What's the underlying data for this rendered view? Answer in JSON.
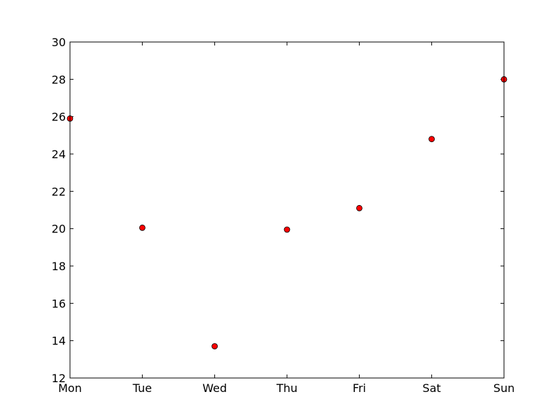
{
  "chart_data": {
    "type": "scatter",
    "title": "",
    "xlabel": "",
    "ylabel": "",
    "categories": [
      "Mon",
      "Tue",
      "Wed",
      "Thu",
      "Fri",
      "Sat",
      "Sun"
    ],
    "series": [
      {
        "values": [
          25.9,
          20.05,
          13.7,
          19.95,
          21.1,
          24.8,
          28.0
        ],
        "color": "#ff0000"
      }
    ],
    "ylim": [
      12,
      30
    ],
    "yticks": [
      "12",
      "14",
      "16",
      "18",
      "20",
      "22",
      "24",
      "26",
      "28",
      "30"
    ],
    "grid": false,
    "legend": "none",
    "marker": "circle"
  }
}
